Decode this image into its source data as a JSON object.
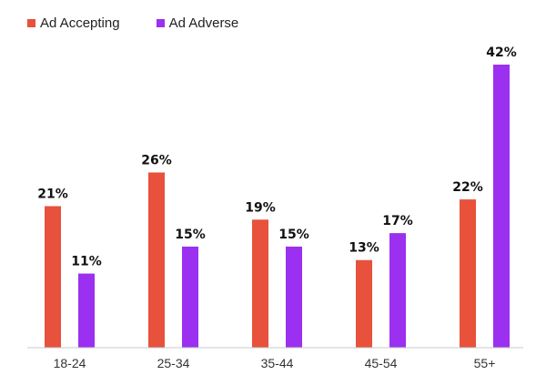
{
  "chart_data": {
    "type": "bar",
    "categories": [
      "18-24",
      "25-34",
      "35-44",
      "45-54",
      "55+"
    ],
    "series": [
      {
        "name": "Ad Accepting",
        "values": [
          21,
          26,
          19,
          13,
          22
        ],
        "color": "#e8513b"
      },
      {
        "name": "Ad Adverse",
        "values": [
          11,
          15,
          15,
          17,
          42
        ],
        "color": "#9b30f0"
      }
    ],
    "data_labels": {
      "Ad Accepting": [
        "21%",
        "26%",
        "19%",
        "13%",
        "22%"
      ],
      "Ad Adverse": [
        "11%",
        "15%",
        "15%",
        "17%",
        "42%"
      ]
    },
    "value_suffix": "%",
    "ylim": [
      0,
      42
    ],
    "title": "",
    "xlabel": "",
    "ylabel": "",
    "grid": false,
    "legend_position": "top-left",
    "axis_color": "#c8c8c8"
  }
}
